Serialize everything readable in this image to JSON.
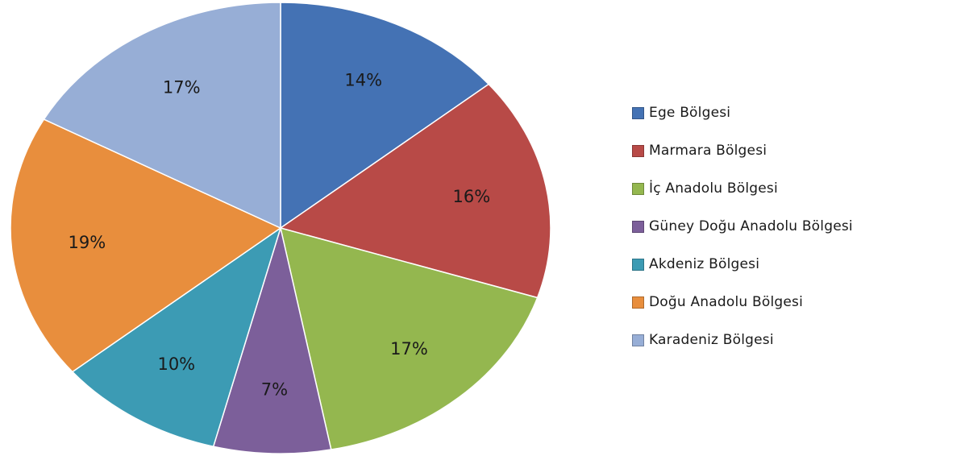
{
  "chart_data": {
    "type": "pie",
    "title": "",
    "start_angle_deg": 0,
    "direction": "clockwise",
    "legend_position": "right",
    "slices": [
      {
        "name": "Ege Bölgesi",
        "value": 14,
        "label": "14%",
        "color": "#4472B4"
      },
      {
        "name": "Marmara Bölgesi",
        "value": 16,
        "label": "16%",
        "color": "#B84A47"
      },
      {
        "name": "İç Anadolu Bölgesi",
        "value": 17,
        "label": "17%",
        "color": "#94B74F"
      },
      {
        "name": "Güney Doğu Anadolu Bölgesi",
        "value": 7,
        "label": "7%",
        "color": "#7C5F9A"
      },
      {
        "name": "Akdeniz Bölgesi",
        "value": 10,
        "label": "10%",
        "color": "#3C9BB4"
      },
      {
        "name": "Doğu Anadolu Bölgesi",
        "value": 19,
        "label": "19%",
        "color": "#E88E3D"
      },
      {
        "name": "Karadeniz Bölgesi",
        "value": 17,
        "label": "17%",
        "color": "#97AED6"
      }
    ]
  }
}
